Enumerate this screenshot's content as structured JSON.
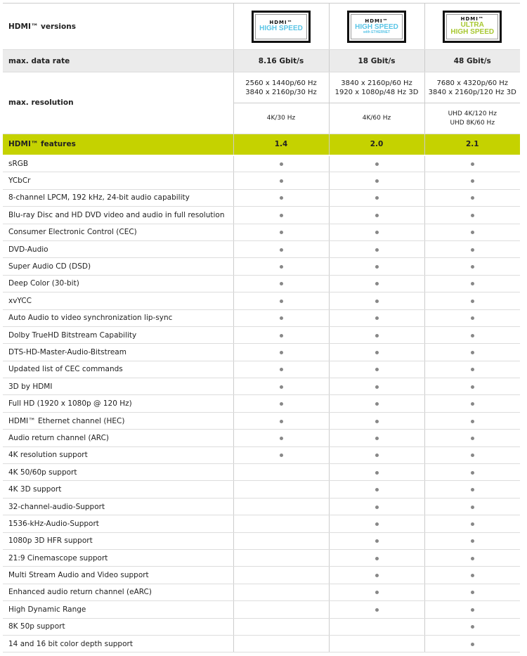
{
  "header": {
    "label": "HDMI™ versions",
    "logos": [
      {
        "brand": "HDMI™",
        "lines": [
          "HIGH SPEED"
        ],
        "sub": "",
        "color": "#5bc5e6"
      },
      {
        "brand": "HDMI™",
        "lines": [
          "HIGH SPEED"
        ],
        "sub": "with ETHERNET",
        "color": "#5bc5e6"
      },
      {
        "brand": "HDMI™",
        "lines": [
          "ULTRA",
          "HIGH SPEED"
        ],
        "sub": "",
        "color": "#a8c832"
      }
    ]
  },
  "rate": {
    "label": "max. data rate",
    "values": [
      "8.16 Gbit/s",
      "18 Gbit/s",
      "48 Gbit/s"
    ]
  },
  "resolution": {
    "label": "max. resolution",
    "values": [
      [
        "2560 x 1440p/60 Hz",
        "3840 x 2160p/30 Hz"
      ],
      [
        "3840 x 2160p/60 Hz",
        "1920 x 1080p/48 Hz 3D"
      ],
      [
        "7680 x 4320p/60 Hz",
        "3840 x 2160p/120 Hz 3D"
      ]
    ],
    "uhd": [
      [
        "4K/30 Hz"
      ],
      [
        "4K/60 Hz"
      ],
      [
        "UHD 4K/120 Hz",
        "UHD 8K/60 Hz"
      ]
    ]
  },
  "features": {
    "label": "HDMI™ features",
    "versions": [
      "1.4",
      "2.0",
      "2.1"
    ],
    "accent": "#c5d200",
    "rows": [
      {
        "name": "sRGB",
        "support": [
          true,
          true,
          true
        ]
      },
      {
        "name": "YCbCr",
        "support": [
          true,
          true,
          true
        ]
      },
      {
        "name": "8-channel LPCM, 192 kHz, 24-bit audio capability",
        "support": [
          true,
          true,
          true
        ]
      },
      {
        "name": "Blu-ray Disc and HD DVD video and audio in full resolution",
        "support": [
          true,
          true,
          true
        ]
      },
      {
        "name": "Consumer Electronic Control (CEC)",
        "support": [
          true,
          true,
          true
        ]
      },
      {
        "name": "DVD-Audio",
        "support": [
          true,
          true,
          true
        ]
      },
      {
        "name": "Super Audio CD (DSD)",
        "support": [
          true,
          true,
          true
        ]
      },
      {
        "name": "Deep Color (30-bit)",
        "support": [
          true,
          true,
          true
        ]
      },
      {
        "name": "xvYCC",
        "support": [
          true,
          true,
          true
        ]
      },
      {
        "name": "Auto Audio to video synchronization lip-sync",
        "support": [
          true,
          true,
          true
        ]
      },
      {
        "name": "Dolby TrueHD Bitstream Capability",
        "support": [
          true,
          true,
          true
        ]
      },
      {
        "name": "DTS-HD-Master-Audio-Bitstream",
        "support": [
          true,
          true,
          true
        ]
      },
      {
        "name": "Updated list of CEC commands",
        "support": [
          true,
          true,
          true
        ]
      },
      {
        "name": "3D by HDMI",
        "support": [
          true,
          true,
          true
        ]
      },
      {
        "name": "Full HD (1920 x 1080p @ 120 Hz)",
        "support": [
          true,
          true,
          true
        ]
      },
      {
        "name": "HDMI™ Ethernet channel (HEC)",
        "support": [
          true,
          true,
          true
        ]
      },
      {
        "name": "Audio return channel (ARC)",
        "support": [
          true,
          true,
          true
        ]
      },
      {
        "name": "4K resolution support",
        "support": [
          true,
          true,
          true
        ]
      },
      {
        "name": "4K 50/60p support",
        "support": [
          false,
          true,
          true
        ]
      },
      {
        "name": "4K 3D support",
        "support": [
          false,
          true,
          true
        ]
      },
      {
        "name": "32-channel-audio-Support",
        "support": [
          false,
          true,
          true
        ]
      },
      {
        "name": "1536-kHz-Audio-Support",
        "support": [
          false,
          true,
          true
        ]
      },
      {
        "name": "1080p 3D HFR support",
        "support": [
          false,
          true,
          true
        ]
      },
      {
        "name": "21:9 Cinemascope support",
        "support": [
          false,
          true,
          true
        ]
      },
      {
        "name": "Multi Stream Audio and Video support",
        "support": [
          false,
          true,
          true
        ]
      },
      {
        "name": "Enhanced audio return channel (eARC)",
        "support": [
          false,
          true,
          true
        ]
      },
      {
        "name": "High Dynamic Range",
        "support": [
          false,
          true,
          true
        ]
      },
      {
        "name": "8K 50p support",
        "support": [
          false,
          false,
          true
        ]
      },
      {
        "name": "14 and 16 bit color depth support",
        "support": [
          false,
          false,
          true
        ]
      }
    ]
  }
}
